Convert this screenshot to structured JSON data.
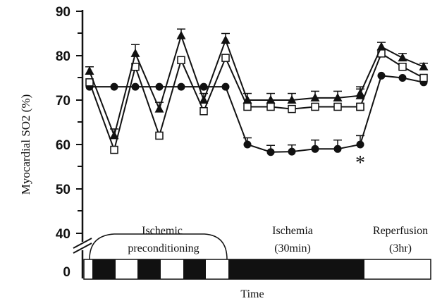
{
  "chart_data": {
    "type": "line",
    "title": "",
    "xlabel": "Time",
    "ylabel": "Myocardial SO2 (%)",
    "yticks": [
      "90",
      "80",
      "70",
      "60",
      "50",
      "40",
      "0"
    ],
    "ylim": [
      40,
      90
    ],
    "axis_break": true,
    "annotation": "*",
    "phases": [
      {
        "lines": [
          "Ischemic",
          "preconditioning"
        ]
      },
      {
        "lines": [
          "Ischemia",
          "(30min)"
        ]
      },
      {
        "lines": [
          "Reperfusion",
          "(3hr)"
        ]
      }
    ],
    "timeline_blocks": [
      "black",
      "white",
      "black",
      "white",
      "black",
      "white",
      "black",
      "white"
    ],
    "series": [
      {
        "marker": "triangle",
        "values": [
          76.5,
          62.0,
          80.5,
          68.0,
          84.5,
          70.0,
          83.5,
          70.0,
          70.0,
          70.0,
          70.5,
          70.5,
          71.0,
          71.5,
          82.0,
          79.5,
          77.5
        ],
        "errors": [
          1.0,
          1.5,
          2.0,
          1.5,
          1.5,
          1.5,
          1.5,
          1.5,
          1.5,
          1.5,
          1.5,
          1.5,
          1.5,
          1.5,
          1.0,
          1.0,
          0.8
        ]
      },
      {
        "marker": "square",
        "values": [
          74.0,
          58.8,
          77.5,
          62.0,
          79.0,
          67.5,
          79.5,
          68.5,
          68.5,
          68.0,
          68.5,
          68.5,
          68.5,
          68.5,
          80.5,
          77.5,
          75.0
        ],
        "errors": [
          0,
          0,
          0,
          0,
          0,
          0,
          0,
          0,
          0,
          0,
          0,
          0,
          0,
          0,
          0,
          0,
          0
        ]
      },
      {
        "marker": "circle",
        "values": [
          73.0,
          73.0,
          73.0,
          73.0,
          73.0,
          73.0,
          73.0,
          60.0,
          58.3,
          58.4,
          59.0,
          59.0,
          60.0,
          null,
          75.5,
          75.0,
          74.0
        ],
        "errors": [
          0,
          0,
          0,
          0,
          0,
          0,
          0,
          1.5,
          1.5,
          1.5,
          2.0,
          2.0,
          2.0,
          0,
          0,
          0,
          0
        ]
      }
    ],
    "x_positions": [
      127,
      162,
      192,
      226,
      257,
      289,
      320,
      351,
      384,
      414,
      447,
      479,
      511,
      511,
      541,
      571,
      601
    ]
  }
}
